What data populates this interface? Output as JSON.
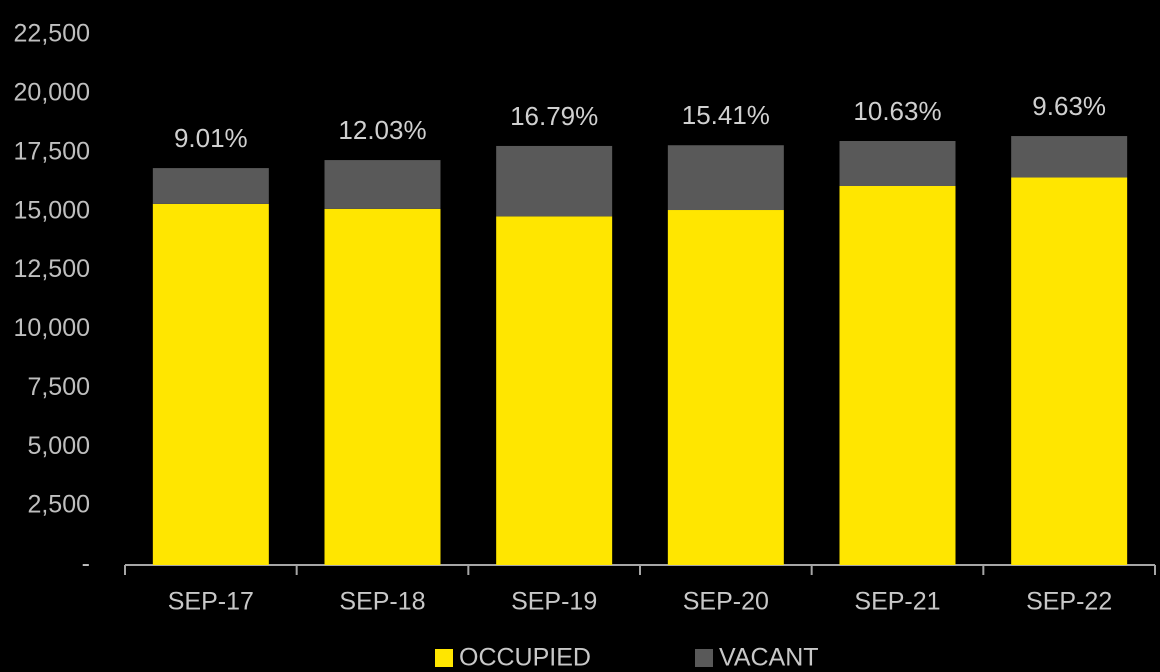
{
  "chart_data": {
    "type": "stacked_bar",
    "categories": [
      "SEP-17",
      "SEP-18",
      "SEP-19",
      "SEP-20",
      "SEP-21",
      "SEP-22"
    ],
    "series": [
      {
        "name": "OCCUPIED",
        "color": "#ffe600",
        "values": [
          15330,
          15120,
          14800,
          15070,
          16090,
          16450
        ]
      },
      {
        "name": "VACANT",
        "color": "#595959",
        "values": [
          1520,
          2070,
          2990,
          2750,
          1910,
          1760
        ]
      }
    ],
    "vacancy_labels": [
      "9.01%",
      "12.03%",
      "16.79%",
      "15.41%",
      "10.63%",
      "9.63%"
    ],
    "ylim": [
      0,
      22500
    ],
    "yticks": [
      {
        "value": 0,
        "label": "-"
      },
      {
        "value": 2500,
        "label": "2,500"
      },
      {
        "value": 5000,
        "label": "5,000"
      },
      {
        "value": 7500,
        "label": "7,500"
      },
      {
        "value": 10000,
        "label": "10,000"
      },
      {
        "value": 12500,
        "label": "12,500"
      },
      {
        "value": 15000,
        "label": "15,000"
      },
      {
        "value": 17500,
        "label": "17,500"
      },
      {
        "value": 20000,
        "label": "20,000"
      },
      {
        "value": 22500,
        "label": "22,500"
      }
    ],
    "legend": "bottom"
  }
}
